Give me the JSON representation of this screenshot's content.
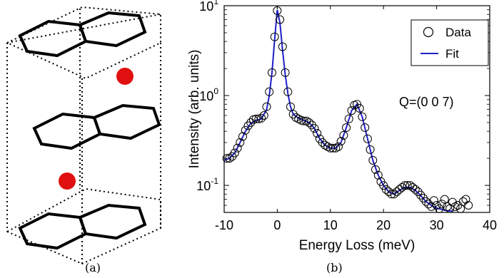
{
  "captions": {
    "a": "(a)",
    "b": "(b)"
  },
  "panel_b": {
    "ylabel": "Intensity (arb. units)",
    "xlabel": "Energy Loss (meV)",
    "annotation": "Q=(0 0 7)",
    "legend": {
      "data": "Data",
      "fit": "Fit"
    },
    "x_ticks": [
      "-10",
      "0",
      "10",
      "20",
      "30",
      "40"
    ],
    "y_tick_exponents": [
      "-1",
      "0",
      "1"
    ]
  },
  "chart_data": {
    "type": "scatter",
    "xlabel": "Energy Loss (meV)",
    "ylabel": "Intensity (arb. units)",
    "yscale": "log",
    "xlim": [
      -10,
      40
    ],
    "ylim": [
      0.05,
      10
    ],
    "annotation": "Q=(0 0 7)",
    "legend_position": "top-right",
    "series": [
      {
        "name": "Data",
        "marker": "open-circle",
        "color": "#000000",
        "points": [
          [
            -9.5,
            0.2
          ],
          [
            -9.0,
            0.2
          ],
          [
            -8.5,
            0.21
          ],
          [
            -8.0,
            0.23
          ],
          [
            -7.5,
            0.26
          ],
          [
            -7.0,
            0.3
          ],
          [
            -6.5,
            0.35
          ],
          [
            -6.0,
            0.41
          ],
          [
            -5.5,
            0.46
          ],
          [
            -5.0,
            0.5
          ],
          [
            -4.5,
            0.54
          ],
          [
            -4.0,
            0.55
          ],
          [
            -3.5,
            0.55
          ],
          [
            -3.0,
            0.56
          ],
          [
            -2.5,
            0.6
          ],
          [
            -2.0,
            0.75
          ],
          [
            -1.5,
            1.1
          ],
          [
            -1.0,
            1.8
          ],
          [
            -0.5,
            4.5
          ],
          [
            0.0,
            8.8
          ],
          [
            0.5,
            7.0
          ],
          [
            1.0,
            3.5
          ],
          [
            1.5,
            1.8
          ],
          [
            2.0,
            1.1
          ],
          [
            2.5,
            0.75
          ],
          [
            3.0,
            0.62
          ],
          [
            3.5,
            0.57
          ],
          [
            4.0,
            0.55
          ],
          [
            4.5,
            0.53
          ],
          [
            5.0,
            0.52
          ],
          [
            5.5,
            0.52
          ],
          [
            6.0,
            0.5
          ],
          [
            6.5,
            0.47
          ],
          [
            7.0,
            0.43
          ],
          [
            7.5,
            0.38
          ],
          [
            8.0,
            0.33
          ],
          [
            8.5,
            0.3
          ],
          [
            9.0,
            0.28
          ],
          [
            9.5,
            0.27
          ],
          [
            10.0,
            0.26
          ],
          [
            10.5,
            0.26
          ],
          [
            11.0,
            0.26
          ],
          [
            11.5,
            0.27
          ],
          [
            12.0,
            0.31
          ],
          [
            12.5,
            0.36
          ],
          [
            13.0,
            0.44
          ],
          [
            13.5,
            0.55
          ],
          [
            14.0,
            0.68
          ],
          [
            14.5,
            0.78
          ],
          [
            15.0,
            0.8
          ],
          [
            15.5,
            0.72
          ],
          [
            16.0,
            0.58
          ],
          [
            16.5,
            0.44
          ],
          [
            17.0,
            0.33
          ],
          [
            17.5,
            0.25
          ],
          [
            18.0,
            0.19
          ],
          [
            18.5,
            0.15
          ],
          [
            19.0,
            0.13
          ],
          [
            19.5,
            0.11
          ],
          [
            20.0,
            0.1
          ],
          [
            20.5,
            0.09
          ],
          [
            21.0,
            0.085
          ],
          [
            21.5,
            0.08
          ],
          [
            22.0,
            0.08
          ],
          [
            22.5,
            0.085
          ],
          [
            23.0,
            0.09
          ],
          [
            23.5,
            0.095
          ],
          [
            24.0,
            0.1
          ],
          [
            24.5,
            0.1
          ],
          [
            25.0,
            0.1
          ],
          [
            25.5,
            0.095
          ],
          [
            26.0,
            0.09
          ],
          [
            26.5,
            0.085
          ],
          [
            27.0,
            0.078
          ],
          [
            27.5,
            0.072
          ],
          [
            28.0,
            0.066
          ],
          [
            28.5,
            0.062
          ],
          [
            29.0,
            0.058
          ],
          [
            29.5,
            0.068
          ],
          [
            30.0,
            0.06
          ],
          [
            30.5,
            0.055
          ],
          [
            31.0,
            0.062
          ],
          [
            31.5,
            0.07
          ],
          [
            32.0,
            0.058
          ],
          [
            32.5,
            0.055
          ],
          [
            33.0,
            0.065
          ],
          [
            33.5,
            0.058
          ],
          [
            34.0,
            0.06
          ],
          [
            34.5,
            0.055
          ],
          [
            35.0,
            0.066
          ],
          [
            35.5,
            0.07
          ],
          [
            36.0,
            0.06
          ]
        ]
      },
      {
        "name": "Fit",
        "marker": "line",
        "color": "#1f1fc8",
        "points": [
          [
            -10,
            0.19
          ],
          [
            -9,
            0.2
          ],
          [
            -8,
            0.23
          ],
          [
            -7,
            0.3
          ],
          [
            -6,
            0.4
          ],
          [
            -5,
            0.49
          ],
          [
            -4,
            0.53
          ],
          [
            -3,
            0.55
          ],
          [
            -2,
            0.7
          ],
          [
            -1.5,
            1.0
          ],
          [
            -1,
            1.8
          ],
          [
            -0.5,
            4.2
          ],
          [
            0,
            9.0
          ],
          [
            0.5,
            6.5
          ],
          [
            1,
            3.2
          ],
          [
            1.5,
            1.7
          ],
          [
            2,
            1.05
          ],
          [
            2.5,
            0.75
          ],
          [
            3,
            0.62
          ],
          [
            4,
            0.56
          ],
          [
            5,
            0.53
          ],
          [
            6,
            0.5
          ],
          [
            7,
            0.43
          ],
          [
            8,
            0.33
          ],
          [
            9,
            0.28
          ],
          [
            10,
            0.26
          ],
          [
            11,
            0.26
          ],
          [
            12,
            0.3
          ],
          [
            13,
            0.44
          ],
          [
            14,
            0.68
          ],
          [
            15,
            0.8
          ],
          [
            16,
            0.58
          ],
          [
            17,
            0.33
          ],
          [
            18,
            0.19
          ],
          [
            19,
            0.13
          ],
          [
            20,
            0.1
          ],
          [
            21,
            0.085
          ],
          [
            22,
            0.08
          ],
          [
            23,
            0.088
          ],
          [
            24,
            0.095
          ],
          [
            25,
            0.095
          ],
          [
            26,
            0.088
          ],
          [
            27,
            0.077
          ],
          [
            28,
            0.066
          ],
          [
            29,
            0.06
          ],
          [
            30,
            0.056
          ],
          [
            31,
            0.054
          ],
          [
            32,
            0.052
          ],
          [
            33,
            0.052
          ]
        ]
      }
    ]
  }
}
